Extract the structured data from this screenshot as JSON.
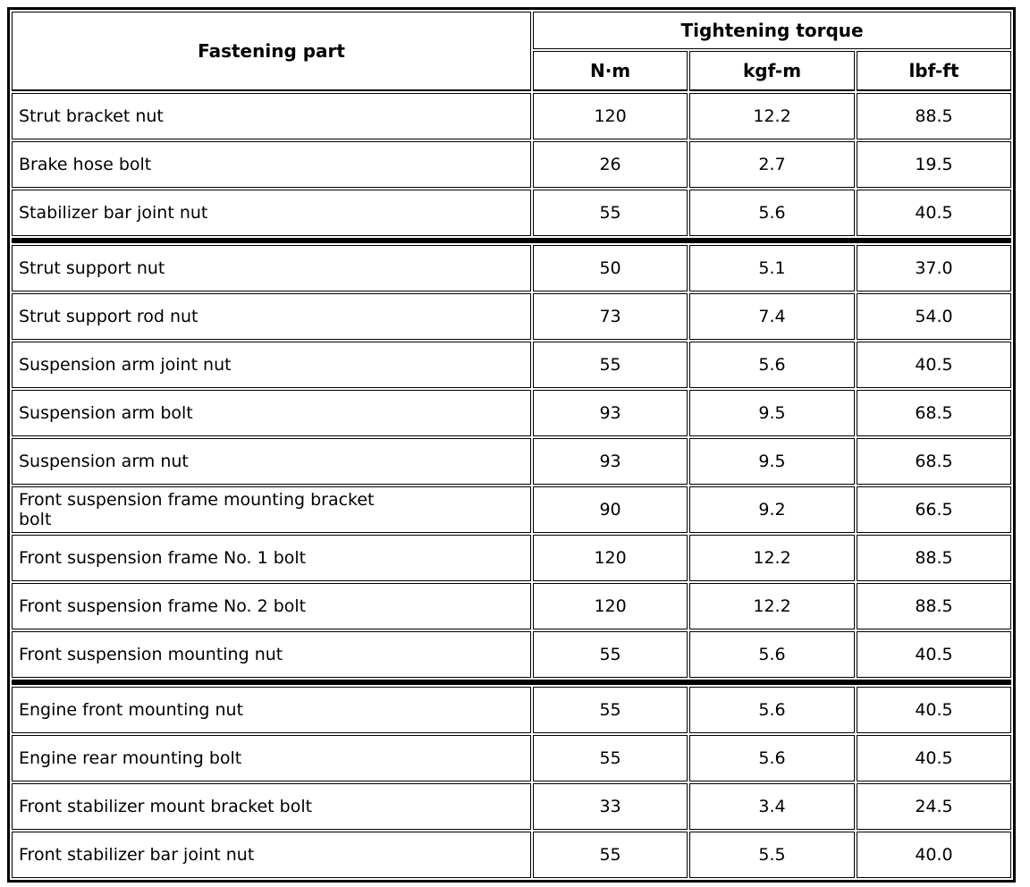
{
  "table": {
    "header": {
      "fastening_part": "Fastening part",
      "tightening_torque": "Tightening torque",
      "units": [
        "N·m",
        "kgf-m",
        "lbf-ft"
      ]
    },
    "rows": [
      {
        "part": "Strut bracket nut",
        "nm": "120",
        "kgfm": "12.2",
        "lbfft": "88.5"
      },
      {
        "part": "Brake hose bolt",
        "nm": "26",
        "kgfm": "2.7",
        "lbfft": "19.5"
      },
      {
        "part": "Stabilizer bar joint nut",
        "nm": "55",
        "kgfm": "5.6",
        "lbfft": "40.5"
      },
      {
        "part": "Strut support nut",
        "nm": "50",
        "kgfm": "5.1",
        "lbfft": "37.0"
      },
      {
        "part": "Strut support rod nut",
        "nm": "73",
        "kgfm": "7.4",
        "lbfft": "54.0"
      },
      {
        "part": "Suspension arm joint nut",
        "nm": "55",
        "kgfm": "5.6",
        "lbfft": "40.5"
      },
      {
        "part": "Suspension arm bolt",
        "nm": "93",
        "kgfm": "9.5",
        "lbfft": "68.5"
      },
      {
        "part": "Suspension arm nut",
        "nm": "93",
        "kgfm": "9.5",
        "lbfft": "68.5"
      },
      {
        "part": "Front suspension frame mounting bracket bolt",
        "nm": "90",
        "kgfm": "9.2",
        "lbfft": "66.5"
      },
      {
        "part": "Front suspension frame No. 1 bolt",
        "nm": "120",
        "kgfm": "12.2",
        "lbfft": "88.5"
      },
      {
        "part": "Front suspension frame No. 2 bolt",
        "nm": "120",
        "kgfm": "12.2",
        "lbfft": "88.5"
      },
      {
        "part": "Front suspension mounting nut",
        "nm": "55",
        "kgfm": "5.6",
        "lbfft": "40.5"
      },
      {
        "part": "Engine front mounting nut",
        "nm": "55",
        "kgfm": "5.6",
        "lbfft": "40.5"
      },
      {
        "part": "Engine rear mounting bolt",
        "nm": "55",
        "kgfm": "5.6",
        "lbfft": "40.5"
      },
      {
        "part": "Front stabilizer mount bracket bolt",
        "nm": "33",
        "kgfm": "3.4",
        "lbfft": "24.5"
      },
      {
        "part": "Front stabilizer bar joint nut",
        "nm": "55",
        "kgfm": "5.5",
        "lbfft": "40.0"
      }
    ],
    "group_breaks_after_row_index": [
      2,
      11
    ]
  }
}
